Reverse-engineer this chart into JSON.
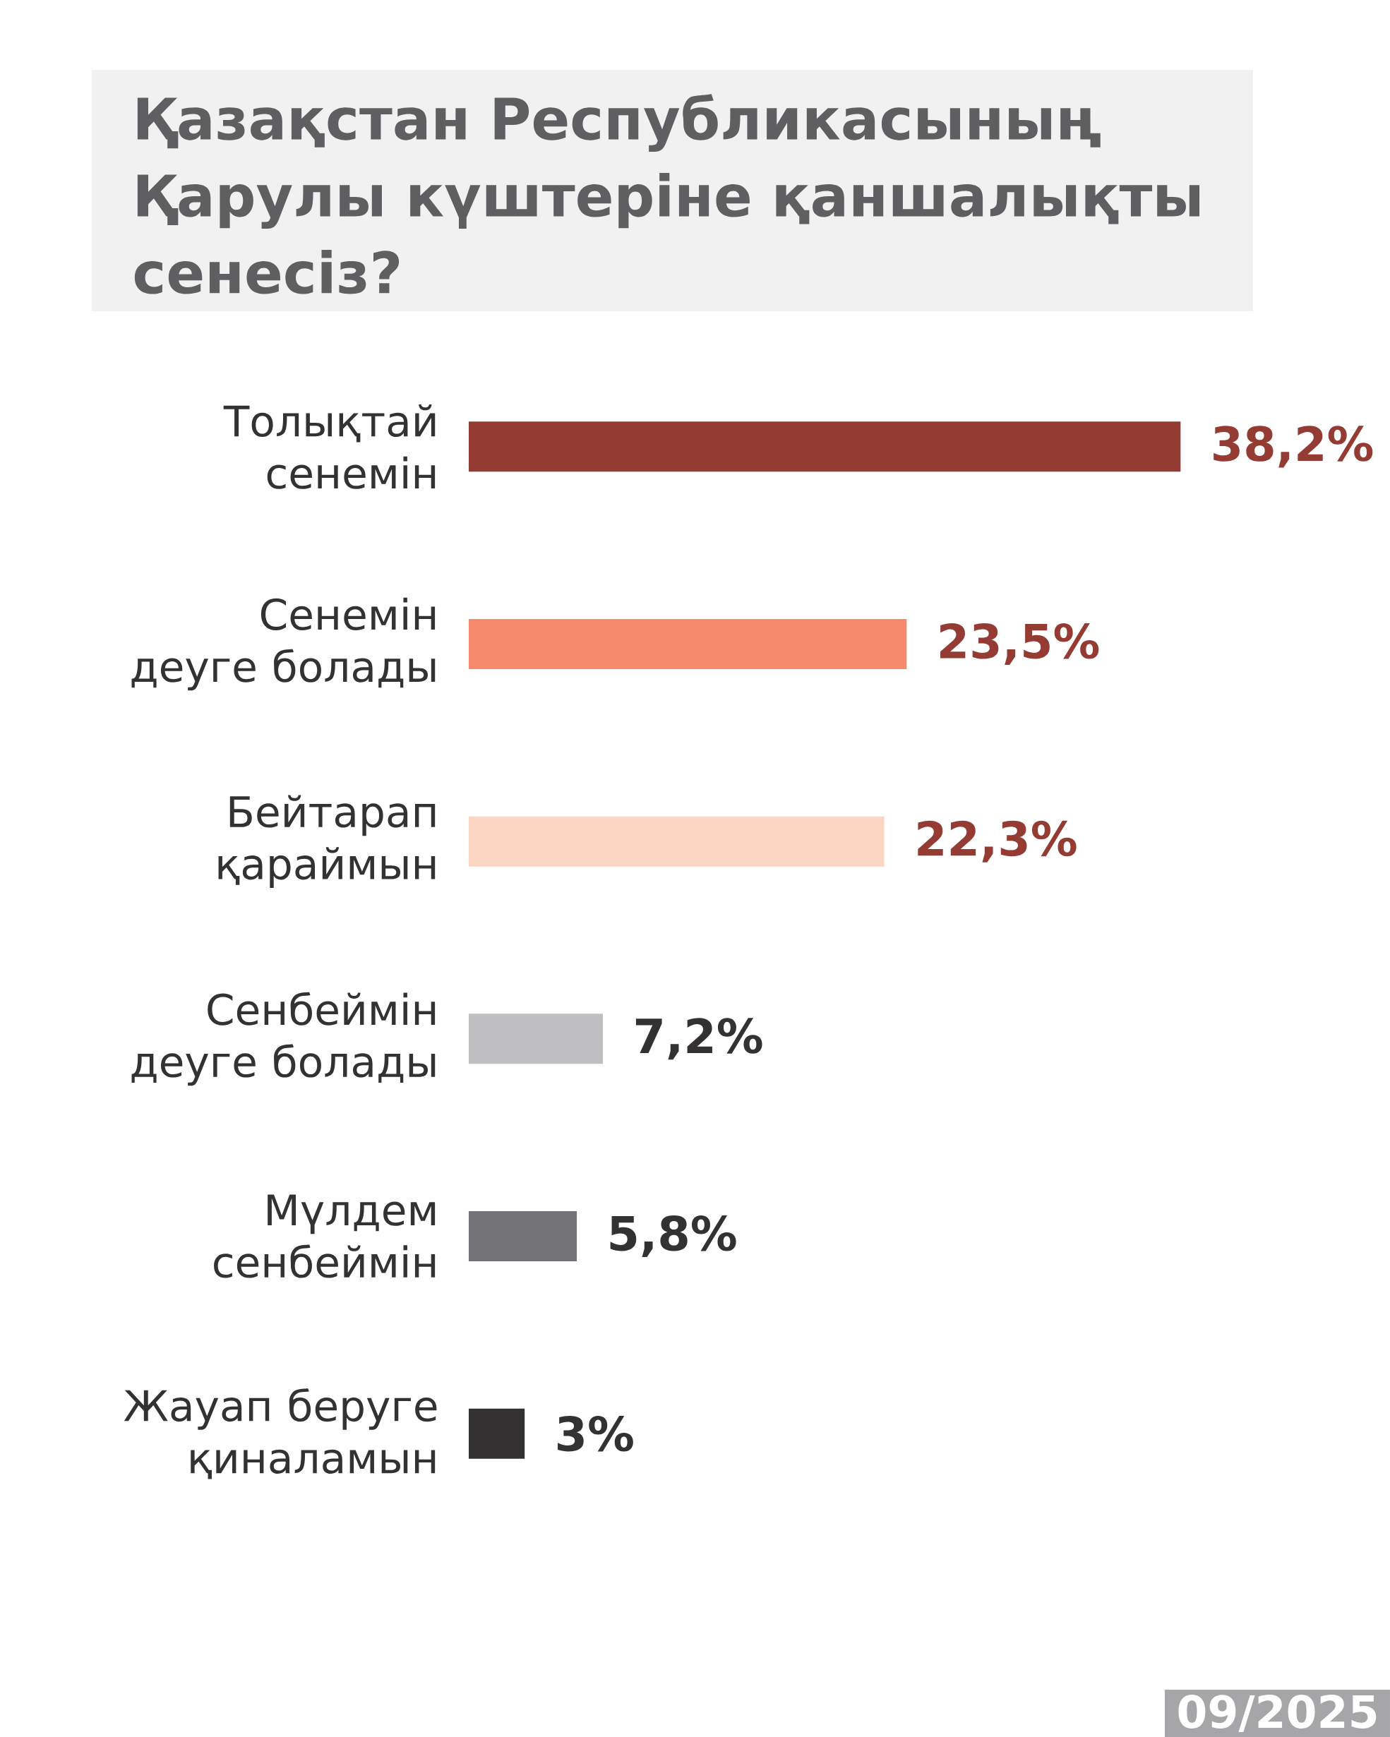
{
  "chart_data": {
    "type": "bar",
    "orientation": "horizontal",
    "title": "Қазақстан Республикасының Қарулы күштеріне қаншалықты сенесіз?",
    "categories": [
      "Толықтай сенемін",
      "Сенемін деуге болады",
      "Бейтарап қараймын",
      "Сенбеймін деуге болады",
      "Мүлдем сенбеймін",
      "Жауап беруге қиналамын"
    ],
    "values": [
      38.2,
      23.5,
      22.3,
      7.2,
      5.8,
      3
    ],
    "colors": [
      "#943c33",
      "#f58b6c",
      "#fcd5c3",
      "#bfbfc1",
      "#737377",
      "#333132"
    ],
    "value_labels": [
      "38,2%",
      "23,5%",
      "22,3%",
      "7,2%",
      "5,8%",
      "3%"
    ],
    "annotations": [
      "09/2025"
    ]
  }
}
